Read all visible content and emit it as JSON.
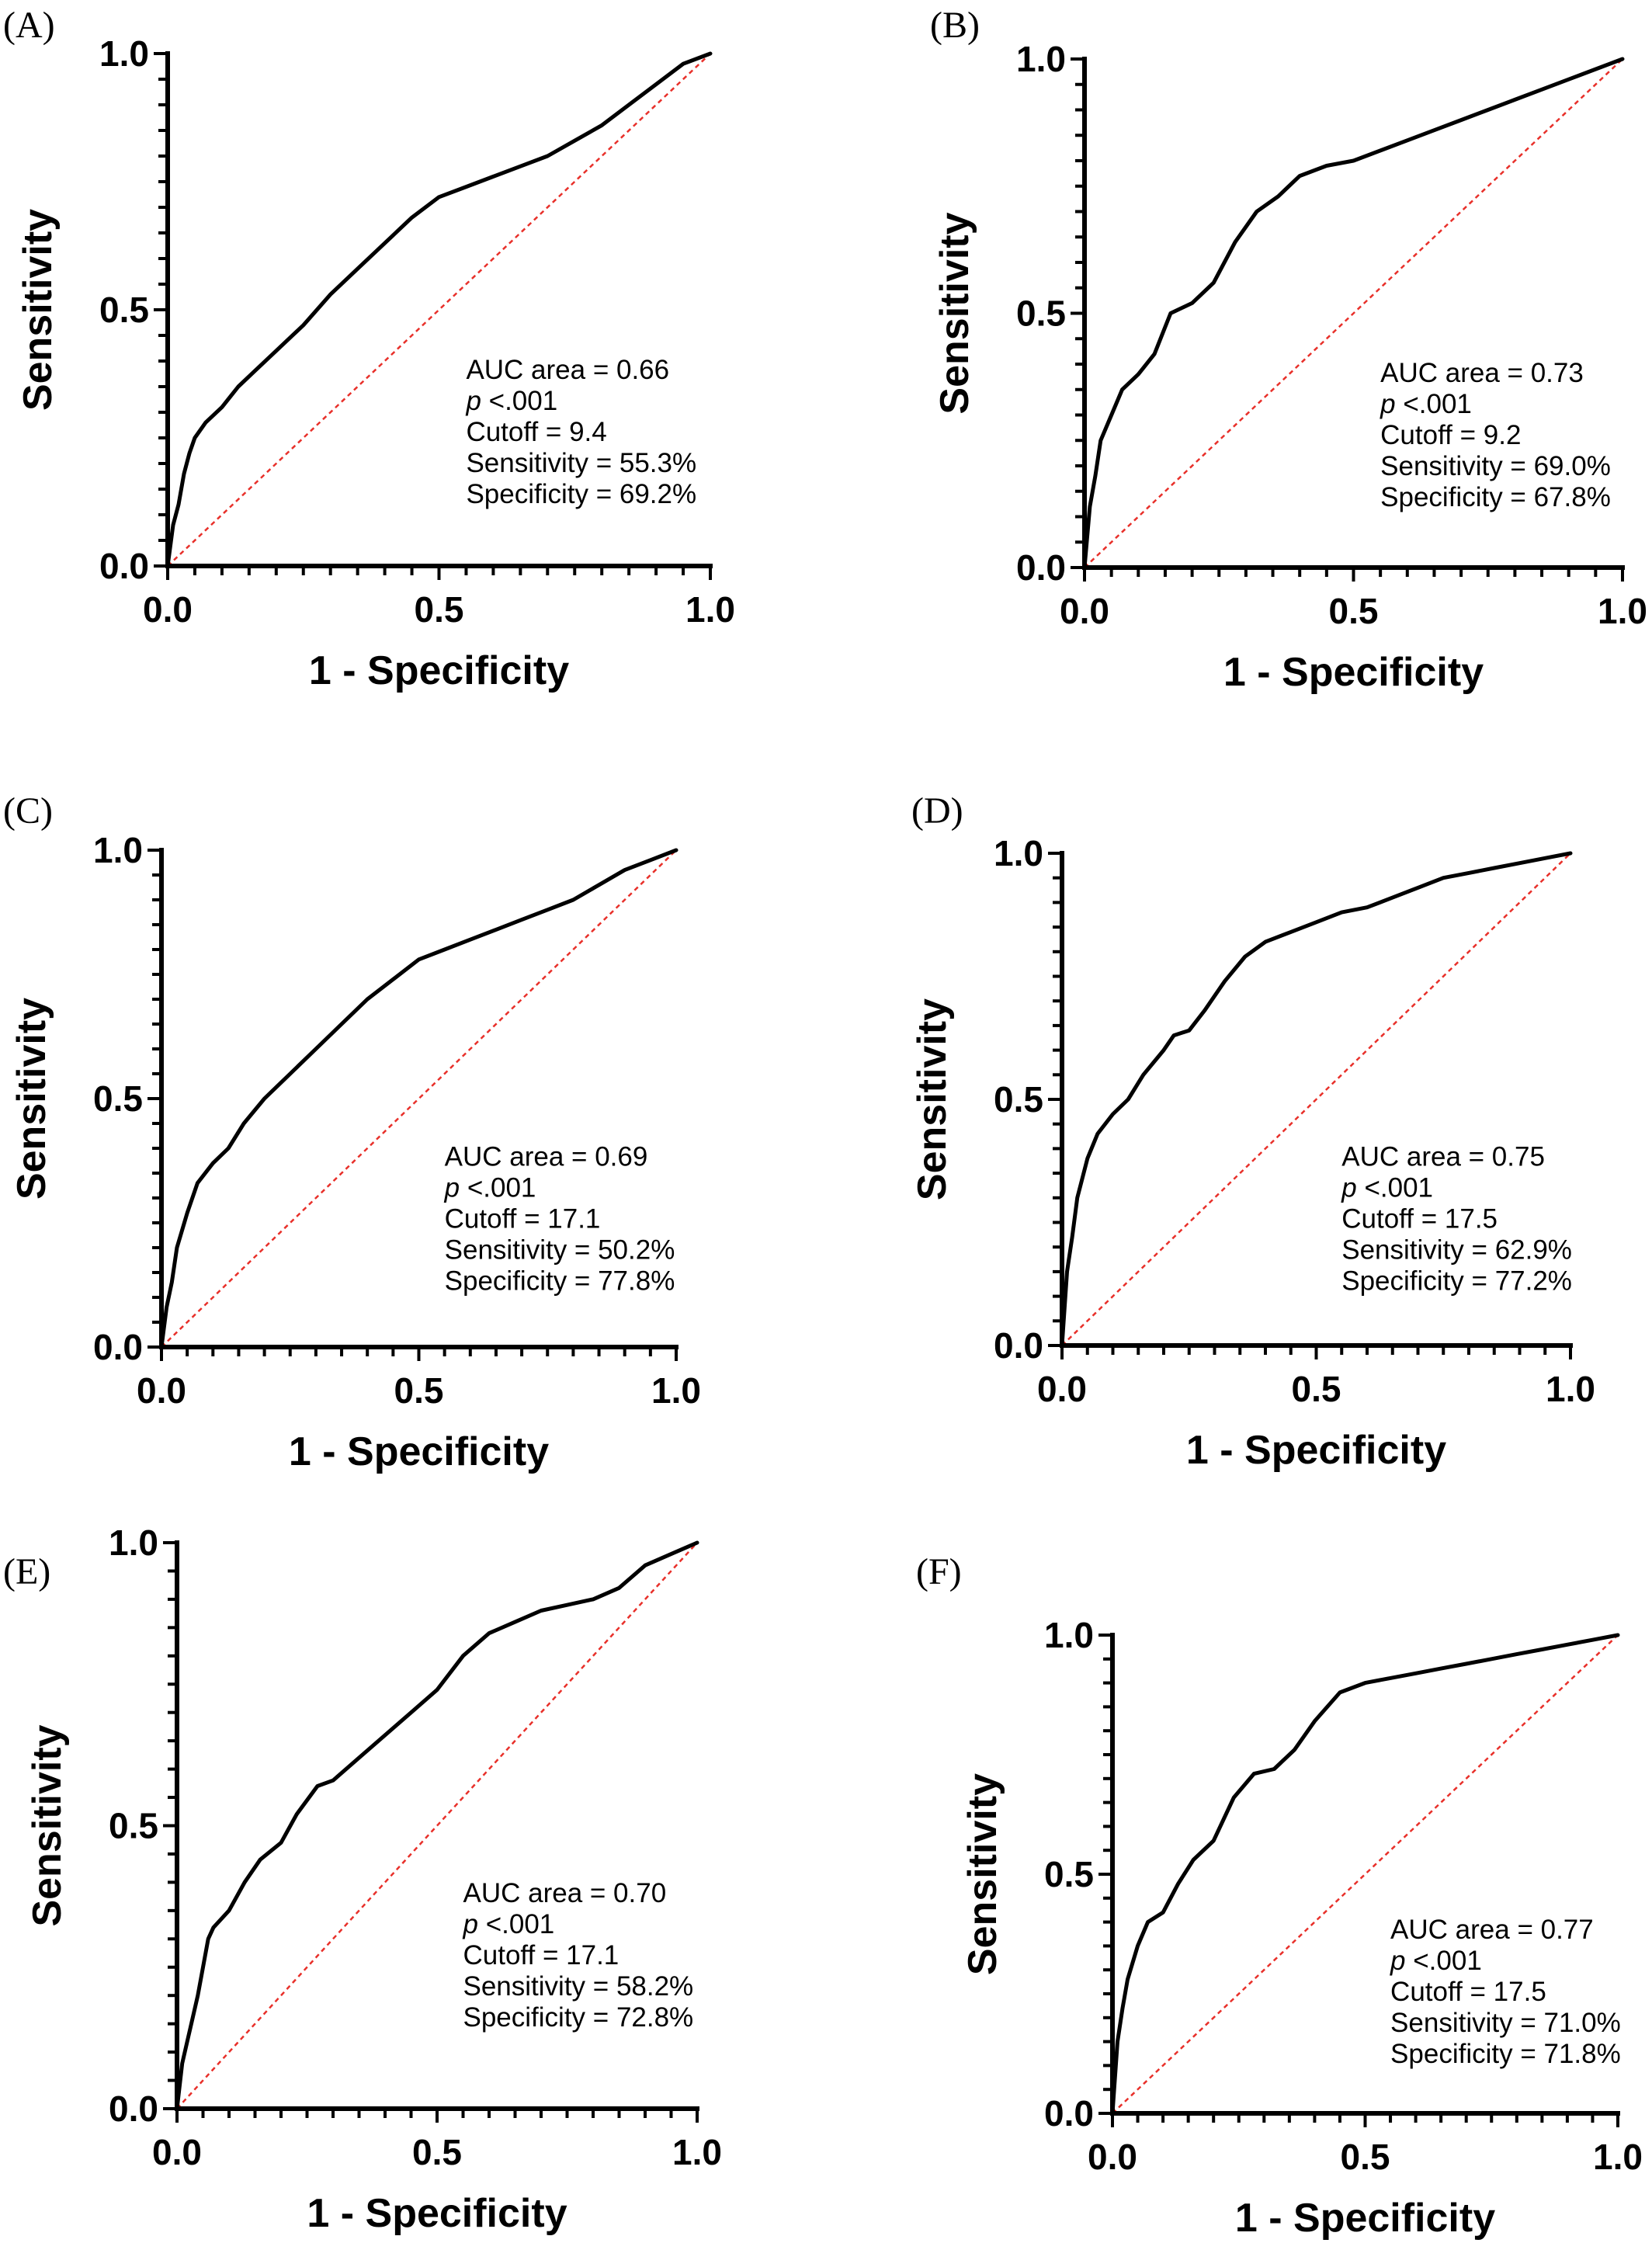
{
  "chart_data": [
    {
      "type": "line",
      "panel": "(A)",
      "xlabel": "1 - Specificity",
      "ylabel": "Sensitivity",
      "xlim": [
        0,
        1
      ],
      "ylim": [
        0,
        1
      ],
      "xticks": [
        "0.0",
        "0.5",
        "1.0"
      ],
      "yticks": [
        "0.0",
        "0.5",
        "1.0"
      ],
      "annotation": {
        "auc": "AUC area = 0.66",
        "p_prefix": "p",
        "p_value": " <.001",
        "cutoff": "Cutoff = 9.4",
        "sensitivity": "Sensitivity = 55.3%",
        "specificity": "Specificity = 69.2%"
      },
      "series": [
        {
          "x": [
            0,
            0.01,
            0.02,
            0.03,
            0.04,
            0.05,
            0.07,
            0.1,
            0.13,
            0.16,
            0.2,
            0.25,
            0.3,
            0.35,
            0.4,
            0.45,
            0.5,
            0.55,
            0.6,
            0.65,
            0.7,
            0.75,
            0.8,
            0.85,
            0.9,
            0.95,
            1.0
          ],
          "y": [
            0,
            0.08,
            0.12,
            0.18,
            0.22,
            0.25,
            0.28,
            0.31,
            0.35,
            0.38,
            0.42,
            0.47,
            0.53,
            0.58,
            0.63,
            0.68,
            0.72,
            0.74,
            0.76,
            0.78,
            0.8,
            0.83,
            0.86,
            0.9,
            0.94,
            0.98,
            1.0
          ]
        },
        {
          "x": [
            0,
            1
          ],
          "y": [
            0,
            1
          ]
        }
      ]
    },
    {
      "type": "line",
      "panel": "(B)",
      "xlabel": "1 - Specificity",
      "ylabel": "Sensitivity",
      "xlim": [
        0,
        1
      ],
      "ylim": [
        0,
        1
      ],
      "xticks": [
        "0.0",
        "0.5",
        "1.0"
      ],
      "yticks": [
        "0.0",
        "0.5",
        "1.0"
      ],
      "annotation": {
        "auc": "AUC area = 0.73",
        "p_prefix": "p",
        "p_value": " <.001",
        "cutoff": "Cutoff = 9.2",
        "sensitivity": "Sensitivity = 69.0%",
        "specificity": "Specificity = 67.8%"
      },
      "series": [
        {
          "x": [
            0,
            0.01,
            0.02,
            0.03,
            0.05,
            0.07,
            0.1,
            0.13,
            0.16,
            0.2,
            0.24,
            0.28,
            0.32,
            0.36,
            0.4,
            0.45,
            0.5,
            0.55,
            0.6,
            0.65,
            0.7,
            0.75,
            0.8,
            0.85,
            0.9,
            0.95,
            1.0
          ],
          "y": [
            0,
            0.12,
            0.18,
            0.25,
            0.3,
            0.35,
            0.38,
            0.42,
            0.5,
            0.52,
            0.56,
            0.64,
            0.7,
            0.73,
            0.77,
            0.79,
            0.8,
            0.82,
            0.84,
            0.86,
            0.88,
            0.9,
            0.92,
            0.94,
            0.96,
            0.98,
            1.0
          ]
        },
        {
          "x": [
            0,
            1
          ],
          "y": [
            0,
            1
          ]
        }
      ]
    },
    {
      "type": "line",
      "panel": "(C)",
      "xlabel": "1 - Specificity",
      "ylabel": "Sensitivity",
      "xlim": [
        0,
        1
      ],
      "ylim": [
        0,
        1
      ],
      "xticks": [
        "0.0",
        "0.5",
        "1.0"
      ],
      "yticks": [
        "0.0",
        "0.5",
        "1.0"
      ],
      "annotation": {
        "auc": "AUC area = 0.69",
        "p_prefix": "p",
        "p_value": " <.001",
        "cutoff": "Cutoff = 17.1",
        "sensitivity": "Sensitivity = 50.2%",
        "specificity": "Specificity = 77.8%"
      },
      "series": [
        {
          "x": [
            0,
            0.01,
            0.02,
            0.03,
            0.05,
            0.07,
            0.1,
            0.13,
            0.16,
            0.2,
            0.25,
            0.3,
            0.35,
            0.4,
            0.45,
            0.5,
            0.55,
            0.6,
            0.65,
            0.7,
            0.75,
            0.8,
            0.85,
            0.9,
            0.95,
            1.0
          ],
          "y": [
            0,
            0.08,
            0.13,
            0.2,
            0.27,
            0.33,
            0.37,
            0.4,
            0.45,
            0.5,
            0.55,
            0.6,
            0.65,
            0.7,
            0.74,
            0.78,
            0.8,
            0.82,
            0.84,
            0.86,
            0.88,
            0.9,
            0.93,
            0.96,
            0.98,
            1.0
          ]
        },
        {
          "x": [
            0,
            1
          ],
          "y": [
            0,
            1
          ]
        }
      ]
    },
    {
      "type": "line",
      "panel": "(D)",
      "xlabel": "1 - Specificity",
      "ylabel": "Sensitivity",
      "xlim": [
        0,
        1
      ],
      "ylim": [
        0,
        1
      ],
      "xticks": [
        "0.0",
        "0.5",
        "1.0"
      ],
      "yticks": [
        "0.0",
        "0.5",
        "1.0"
      ],
      "annotation": {
        "auc": "AUC area = 0.75",
        "p_prefix": "p",
        "p_value": " <.001",
        "cutoff": "Cutoff = 17.5",
        "sensitivity": "Sensitivity = 62.9%",
        "specificity": "Specificity = 77.2%"
      },
      "series": [
        {
          "x": [
            0,
            0.01,
            0.02,
            0.03,
            0.05,
            0.07,
            0.1,
            0.13,
            0.16,
            0.2,
            0.22,
            0.25,
            0.28,
            0.32,
            0.36,
            0.4,
            0.45,
            0.5,
            0.55,
            0.6,
            0.65,
            0.7,
            0.75,
            0.8,
            0.85,
            0.9,
            0.95,
            1.0
          ],
          "y": [
            0,
            0.15,
            0.22,
            0.3,
            0.38,
            0.43,
            0.47,
            0.5,
            0.55,
            0.6,
            0.63,
            0.64,
            0.68,
            0.74,
            0.79,
            0.82,
            0.84,
            0.86,
            0.88,
            0.89,
            0.91,
            0.93,
            0.95,
            0.96,
            0.97,
            0.98,
            0.99,
            1.0
          ]
        },
        {
          "x": [
            0,
            1
          ],
          "y": [
            0,
            1
          ]
        }
      ]
    },
    {
      "type": "line",
      "panel": "(E)",
      "xlabel": "1 - Specificity",
      "ylabel": "Sensitivity",
      "xlim": [
        0,
        1
      ],
      "ylim": [
        0,
        1
      ],
      "xticks": [
        "0.0",
        "0.5",
        "1.0"
      ],
      "yticks": [
        "0.0",
        "0.5",
        "1.0"
      ],
      "annotation": {
        "auc": "AUC area = 0.70",
        "p_prefix": "p",
        "p_value": " <.001",
        "cutoff": "Cutoff = 17.1",
        "sensitivity": "Sensitivity = 58.2%",
        "specificity": "Specificity = 72.8%"
      },
      "series": [
        {
          "x": [
            0,
            0.01,
            0.02,
            0.03,
            0.04,
            0.05,
            0.06,
            0.07,
            0.1,
            0.13,
            0.16,
            0.2,
            0.23,
            0.27,
            0.3,
            0.35,
            0.4,
            0.45,
            0.5,
            0.55,
            0.6,
            0.65,
            0.7,
            0.75,
            0.8,
            0.85,
            0.9,
            0.95,
            1.0
          ],
          "y": [
            0,
            0.08,
            0.12,
            0.16,
            0.2,
            0.25,
            0.3,
            0.32,
            0.35,
            0.4,
            0.44,
            0.47,
            0.52,
            0.57,
            0.58,
            0.62,
            0.66,
            0.7,
            0.74,
            0.8,
            0.84,
            0.86,
            0.88,
            0.89,
            0.9,
            0.92,
            0.96,
            0.98,
            1.0
          ]
        },
        {
          "x": [
            0,
            1
          ],
          "y": [
            0,
            1
          ]
        }
      ]
    },
    {
      "type": "line",
      "panel": "(F)",
      "xlabel": "1 - Specificity",
      "ylabel": "Sensitivity",
      "xlim": [
        0,
        1
      ],
      "ylim": [
        0,
        1
      ],
      "xticks": [
        "0.0",
        "0.5",
        "1.0"
      ],
      "yticks": [
        "0.0",
        "0.5",
        "1.0"
      ],
      "annotation": {
        "auc": "AUC area = 0.77",
        "p_prefix": "p",
        "p_value": " <.001",
        "cutoff": "Cutoff = 17.5",
        "sensitivity": "Sensitivity = 71.0%",
        "specificity": "Specificity = 71.8%"
      },
      "series": [
        {
          "x": [
            0,
            0.01,
            0.02,
            0.03,
            0.05,
            0.07,
            0.1,
            0.13,
            0.16,
            0.2,
            0.24,
            0.28,
            0.32,
            0.36,
            0.4,
            0.45,
            0.5,
            0.55,
            0.6,
            0.65,
            0.7,
            0.75,
            0.8,
            0.85,
            0.9,
            0.95,
            1.0
          ],
          "y": [
            0,
            0.15,
            0.22,
            0.28,
            0.35,
            0.4,
            0.42,
            0.48,
            0.53,
            0.57,
            0.66,
            0.71,
            0.72,
            0.76,
            0.82,
            0.88,
            0.9,
            0.91,
            0.92,
            0.93,
            0.94,
            0.95,
            0.96,
            0.97,
            0.98,
            0.99,
            1.0
          ]
        },
        {
          "x": [
            0,
            1
          ],
          "y": [
            0,
            1
          ]
        }
      ]
    }
  ]
}
